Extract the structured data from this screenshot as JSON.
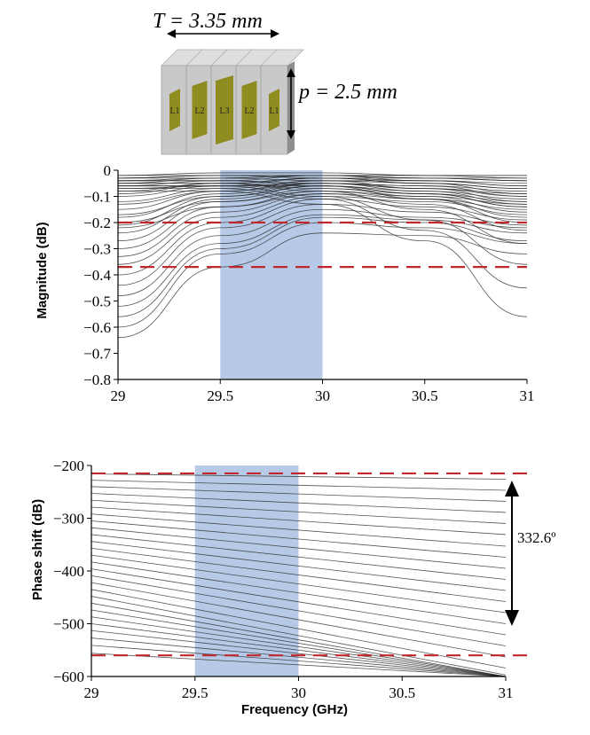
{
  "diagram": {
    "thickness_label": "T = 3.35 mm",
    "period_label": "p = 2.5 mm",
    "layer_labels": [
      "L1",
      "L2",
      "L3",
      "L2",
      "L1"
    ],
    "colors": {
      "block": "#c9c9c9",
      "block_dark": "#8e8e8e",
      "patch": "#8f8d1f"
    }
  },
  "chart_data": [
    {
      "type": "line",
      "xlabel": "",
      "ylabel": "Magnitude (dB)",
      "xlim": [
        29,
        31
      ],
      "ylim": [
        -0.8,
        0
      ],
      "x_ticks": [
        "29",
        "29.5",
        "30",
        "30.5",
        "31"
      ],
      "y_ticks": [
        "0",
        "-0.1",
        "-0.2",
        "-0.3",
        "-0.4",
        "-0.5",
        "-0.6",
        "-0.7",
        "-0.8"
      ],
      "band": [
        29.5,
        30
      ],
      "threshold_lines": [
        -0.2,
        -0.37
      ],
      "x": [
        29,
        29.5,
        30,
        30.5,
        31
      ],
      "series": [
        {
          "values": [
            -0.64,
            -0.37,
            -0.24,
            -0.25,
            -0.32
          ]
        },
        {
          "values": [
            -0.6,
            -0.32,
            -0.2,
            -0.22,
            -0.28
          ]
        },
        {
          "values": [
            -0.56,
            -0.3,
            -0.18,
            -0.2,
            -0.27
          ]
        },
        {
          "values": [
            -0.52,
            -0.28,
            -0.17,
            -0.19,
            -0.24
          ]
        },
        {
          "values": [
            -0.48,
            -0.25,
            -0.15,
            -0.18,
            -0.22
          ]
        },
        {
          "values": [
            -0.44,
            -0.22,
            -0.13,
            -0.16,
            -0.21
          ]
        },
        {
          "values": [
            -0.4,
            -0.2,
            -0.11,
            -0.14,
            -0.19
          ]
        },
        {
          "values": [
            -0.36,
            -0.18,
            -0.1,
            -0.12,
            -0.17
          ]
        },
        {
          "values": [
            -0.33,
            -0.16,
            -0.09,
            -0.11,
            -0.15
          ]
        },
        {
          "values": [
            -0.3,
            -0.14,
            -0.08,
            -0.1,
            -0.13
          ]
        },
        {
          "values": [
            -0.27,
            -0.12,
            -0.07,
            -0.09,
            -0.12
          ]
        },
        {
          "values": [
            -0.24,
            -0.11,
            -0.06,
            -0.08,
            -0.11
          ]
        },
        {
          "values": [
            -0.21,
            -0.1,
            -0.05,
            -0.07,
            -0.09
          ]
        },
        {
          "values": [
            -0.18,
            -0.09,
            -0.05,
            -0.06,
            -0.08
          ]
        },
        {
          "values": [
            -0.15,
            -0.08,
            -0.04,
            -0.05,
            -0.07
          ]
        },
        {
          "values": [
            -0.12,
            -0.07,
            -0.04,
            -0.04,
            -0.06
          ]
        },
        {
          "values": [
            -0.1,
            -0.06,
            -0.03,
            -0.04,
            -0.05
          ]
        },
        {
          "values": [
            -0.08,
            -0.05,
            -0.03,
            -0.03,
            -0.04
          ]
        },
        {
          "values": [
            -0.06,
            -0.04,
            -0.02,
            -0.03,
            -0.03
          ]
        },
        {
          "values": [
            -0.04,
            -0.03,
            -0.02,
            -0.02,
            -0.03
          ]
        },
        {
          "values": [
            -0.03,
            -0.02,
            -0.02,
            -0.02,
            -0.02
          ]
        },
        {
          "values": [
            -0.02,
            -0.01,
            -0.01,
            -0.02,
            -0.02
          ]
        },
        {
          "values": [
            -0.05,
            -0.03,
            -0.02,
            -0.03,
            -0.04
          ]
        },
        {
          "values": [
            -0.09,
            -0.05,
            -0.03,
            -0.05,
            -0.07
          ]
        },
        {
          "values": [
            -0.13,
            -0.08,
            -0.05,
            -0.07,
            -0.1
          ]
        },
        {
          "values": [
            -0.17,
            -0.1,
            -0.06,
            -0.09,
            -0.14
          ]
        },
        {
          "values": [
            -0.2,
            -0.12,
            -0.08,
            -0.11,
            -0.18
          ]
        },
        {
          "values": [
            -0.22,
            -0.14,
            -0.09,
            -0.13,
            -0.23
          ]
        },
        {
          "values": [
            -0.03,
            -0.03,
            -0.04,
            -0.07,
            -0.12
          ]
        },
        {
          "values": [
            -0.04,
            -0.04,
            -0.06,
            -0.11,
            -0.2
          ]
        },
        {
          "values": [
            -0.05,
            -0.05,
            -0.08,
            -0.15,
            -0.28
          ]
        },
        {
          "values": [
            -0.06,
            -0.06,
            -0.1,
            -0.19,
            -0.36
          ]
        },
        {
          "values": [
            -0.07,
            -0.07,
            -0.11,
            -0.23,
            -0.45
          ]
        },
        {
          "values": [
            -0.08,
            -0.08,
            -0.13,
            -0.27,
            -0.56
          ]
        },
        {
          "values": [
            -0.05,
            -0.05,
            -0.07,
            -0.1,
            -0.16
          ]
        },
        {
          "values": [
            -0.04,
            -0.04,
            -0.05,
            -0.08,
            -0.13
          ]
        },
        {
          "values": [
            -0.06,
            -0.06,
            -0.06,
            -0.09,
            -0.14
          ]
        },
        {
          "values": [
            -0.02,
            -0.02,
            -0.03,
            -0.05,
            -0.09
          ]
        },
        {
          "values": [
            -0.03,
            -0.02,
            -0.02,
            -0.04,
            -0.06
          ]
        },
        {
          "values": [
            -0.07,
            -0.06,
            -0.05,
            -0.06,
            -0.1
          ]
        }
      ]
    },
    {
      "type": "line",
      "xlabel": "Frequency (GHz)",
      "ylabel": "Phase shift (dB)",
      "xlim": [
        29,
        31
      ],
      "ylim": [
        -600,
        -200
      ],
      "x_ticks": [
        "29",
        "29.5",
        "30",
        "30.5",
        "31"
      ],
      "y_ticks": [
        "-200",
        "-300",
        "-400",
        "-500",
        "-600"
      ],
      "band": [
        29.5,
        30
      ],
      "threshold_lines": [
        -215,
        -560
      ],
      "annotation": "332.6º",
      "x": [
        29,
        31
      ],
      "series": [
        {
          "values": [
            -216,
            -226
          ]
        },
        {
          "values": [
            -228,
            -247
          ]
        },
        {
          "values": [
            -240,
            -268
          ]
        },
        {
          "values": [
            -253,
            -289
          ]
        },
        {
          "values": [
            -266,
            -310
          ]
        },
        {
          "values": [
            -279,
            -331
          ]
        },
        {
          "values": [
            -292,
            -353
          ]
        },
        {
          "values": [
            -305,
            -374
          ]
        },
        {
          "values": [
            -318,
            -395
          ]
        },
        {
          "values": [
            -331,
            -416
          ]
        },
        {
          "values": [
            -344,
            -437
          ]
        },
        {
          "values": [
            -357,
            -458
          ]
        },
        {
          "values": [
            -370,
            -479
          ]
        },
        {
          "values": [
            -383,
            -500
          ]
        },
        {
          "values": [
            -396,
            -521
          ]
        },
        {
          "values": [
            -409,
            -542
          ]
        },
        {
          "values": [
            -422,
            -563
          ]
        },
        {
          "values": [
            -435,
            -584
          ]
        },
        {
          "values": [
            -448,
            -597
          ]
        },
        {
          "values": [
            -461,
            -600
          ]
        },
        {
          "values": [
            -474,
            -600
          ]
        },
        {
          "values": [
            -487,
            -600
          ]
        },
        {
          "values": [
            -500,
            -600
          ]
        },
        {
          "values": [
            -513,
            -600
          ]
        },
        {
          "values": [
            -527,
            -600
          ]
        },
        {
          "values": [
            -541,
            -600
          ]
        },
        {
          "values": [
            -556,
            -600
          ]
        }
      ]
    }
  ]
}
